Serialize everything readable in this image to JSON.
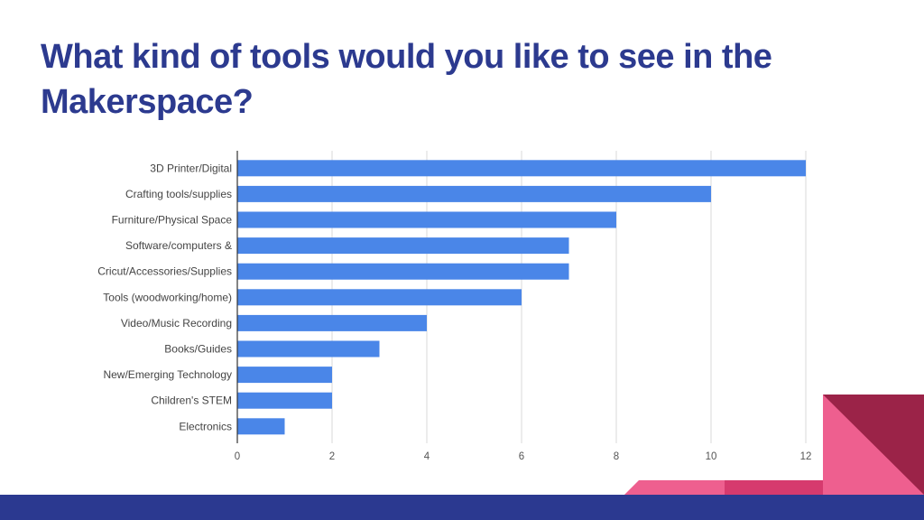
{
  "slide": {
    "title": "What kind of tools would you like to see in the Makerspace?"
  },
  "colors": {
    "title": "#2c3a8f",
    "bar": "#4a86e8",
    "grid": "#d9d9d9",
    "axis": "#333333",
    "footer_band": "#2b3990",
    "accent_pink": "#ee5f8f",
    "accent_crimson": "#d63a6e",
    "accent_maroon": "#9b2348"
  },
  "chart_data": {
    "type": "bar",
    "orientation": "horizontal",
    "categories": [
      "3D Printer/Digital",
      "Crafting tools/supplies",
      "Furniture/Physical Space",
      "Software/computers &",
      "Cricut/Accessories/Supplies",
      "Tools (woodworking/home)",
      "Video/Music Recording",
      "Books/Guides",
      "New/Emerging Technology",
      "Children's STEM",
      "Electronics"
    ],
    "values": [
      12,
      10,
      8,
      7,
      7,
      6,
      4,
      3,
      2,
      2,
      1
    ],
    "xlim": [
      0,
      12
    ],
    "xticks": [
      0,
      2,
      4,
      6,
      8,
      10,
      12
    ],
    "grid": true,
    "legend": "none"
  }
}
